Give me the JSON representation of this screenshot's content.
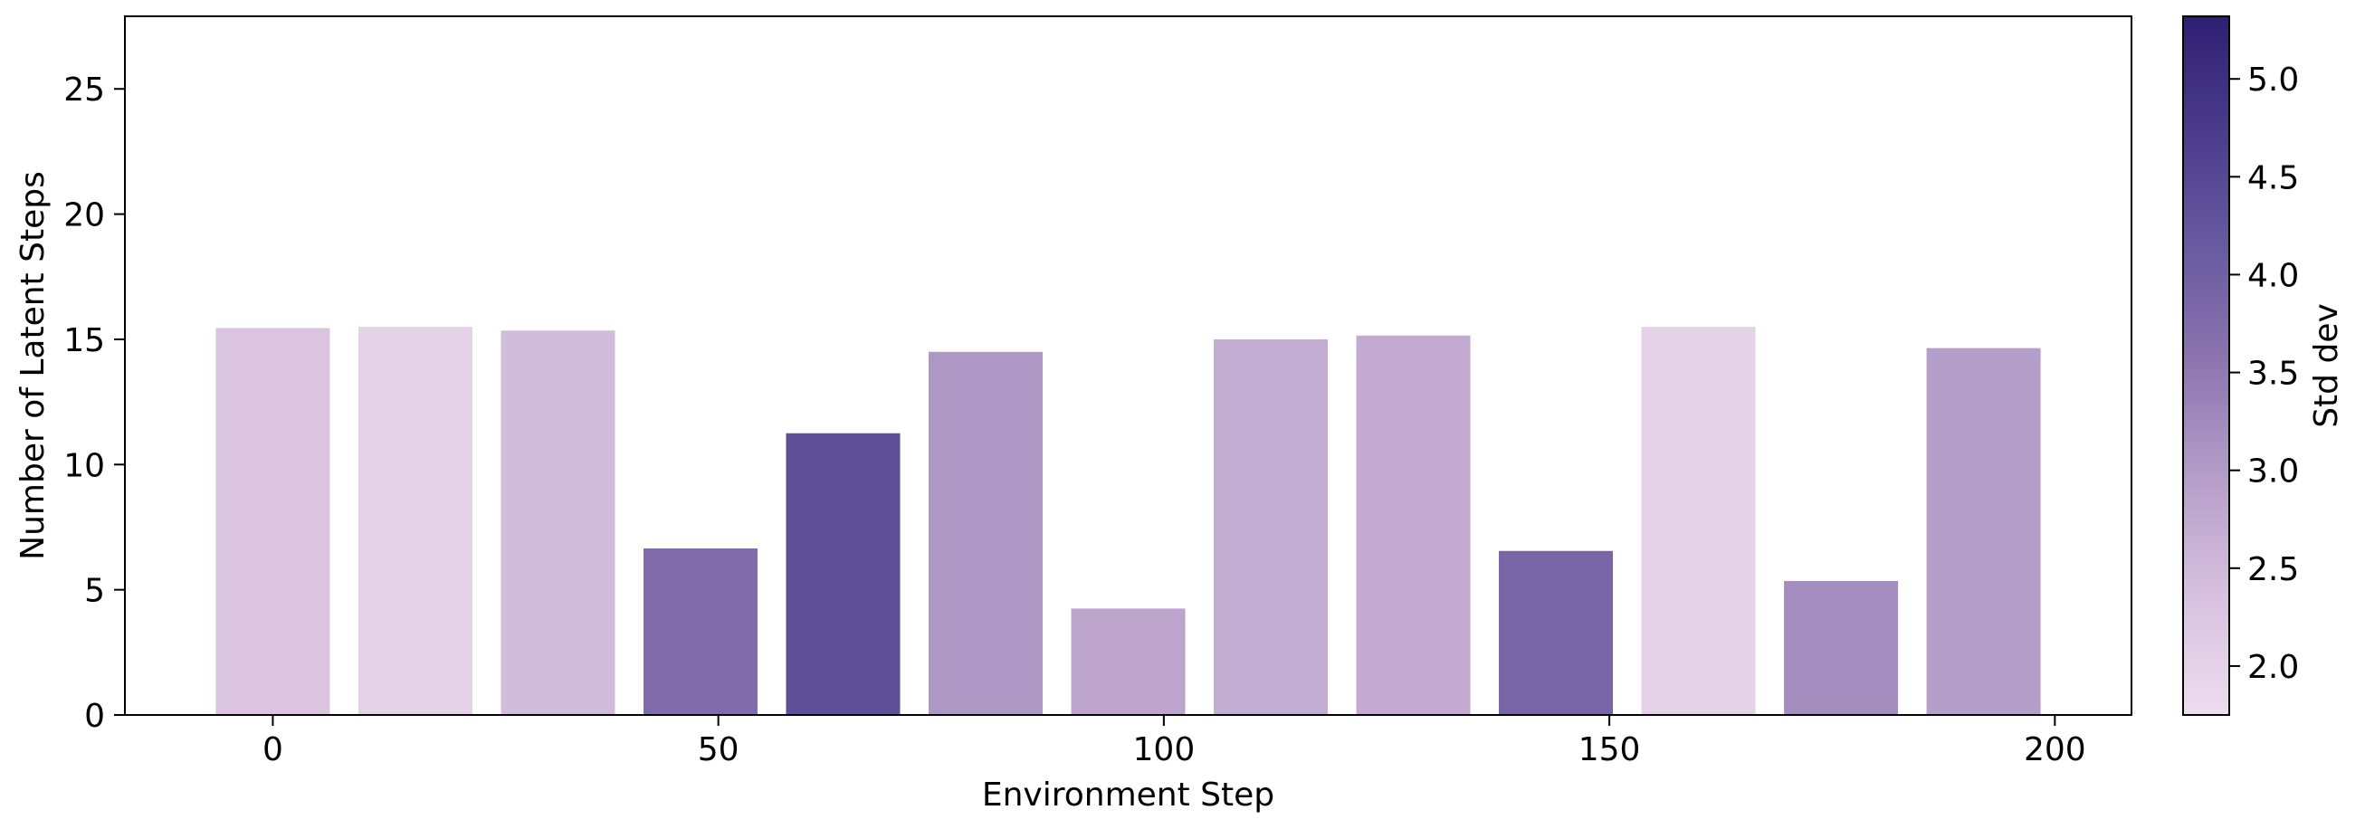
{
  "chart_data": {
    "type": "bar",
    "x": [
      0,
      16,
      32,
      48,
      64,
      80,
      96,
      112,
      128,
      144,
      160,
      176,
      192
    ],
    "values": [
      15.45,
      15.5,
      15.35,
      6.65,
      11.25,
      14.5,
      4.25,
      15.0,
      15.15,
      6.55,
      15.5,
      5.35,
      14.65
    ],
    "std_dev": [
      2.3,
      2.0,
      2.45,
      3.75,
      4.35,
      3.05,
      2.85,
      2.7,
      2.75,
      3.9,
      2.0,
      3.2,
      2.95
    ],
    "bar_width": 12.8,
    "xlabel": "Environment Step",
    "ylabel": "Number of Latent Steps",
    "xlim": [
      -16.6,
      208.6
    ],
    "ylim": [
      0,
      27.9
    ],
    "xticks": [
      0,
      50,
      100,
      150,
      200
    ],
    "yticks": [
      0,
      5,
      10,
      15,
      20,
      25
    ],
    "grid": false,
    "colorbar": {
      "label": "Std dev",
      "range": [
        1.75,
        5.32
      ],
      "ticks": [
        2.0,
        2.5,
        3.0,
        3.5,
        4.0,
        4.5,
        5.0
      ],
      "tick_labels": [
        "2.0",
        "2.5",
        "3.0",
        "3.5",
        "4.0",
        "4.5",
        "5.0"
      ],
      "colormap": [
        "#efdcef",
        "#d8c2df",
        "#b79fca",
        "#8e76b0",
        "#685ba0",
        "#4b3d8c",
        "#2e1f72"
      ]
    }
  }
}
